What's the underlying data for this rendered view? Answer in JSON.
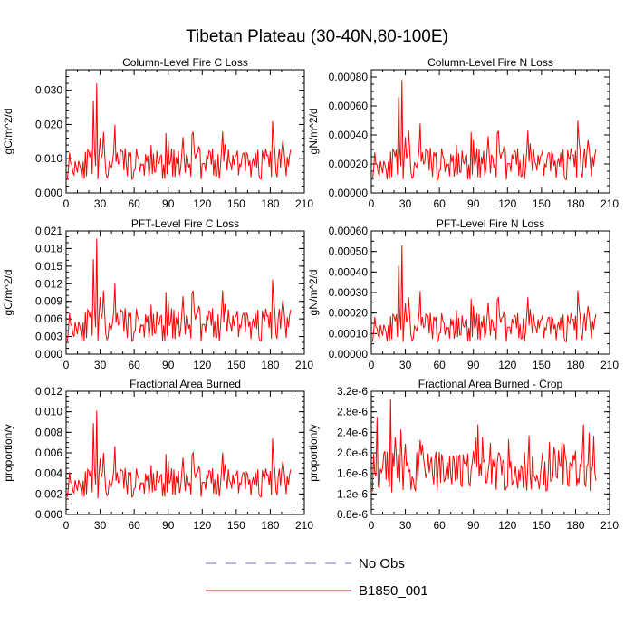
{
  "title": "Tibetan Plateau (30-40N,80-100E)",
  "colors": {
    "series": "#ff0000",
    "obs": "#6f6fc0",
    "axis": "#000000"
  },
  "legend": [
    {
      "label": "No Obs",
      "style": "dashed",
      "color": "#6f6fc0"
    },
    {
      "label": "B1850_001",
      "style": "solid",
      "color": "#ff0000"
    }
  ],
  "chart_data": [
    {
      "type": "line",
      "title": "Column-Level Fire C Loss",
      "ylabel": "gC/m^2/d",
      "xlim": [
        0,
        210
      ],
      "xticks": [
        0,
        30,
        60,
        90,
        120,
        150,
        180,
        210
      ],
      "xticklabels": [
        "0",
        "30",
        "60",
        "90",
        "120",
        "150",
        "180",
        "210"
      ],
      "ylim": [
        0,
        0.036
      ],
      "yticks": [
        0,
        0.01,
        0.02,
        0.03
      ],
      "yticklabels": [
        "0.000",
        "0.010",
        "0.020",
        "0.030"
      ],
      "yminor": 0.002,
      "series": [
        {
          "name": "B1850_001",
          "peak": 0.032,
          "peak_at": 27,
          "second": 0.027,
          "second_at": 24,
          "base": 0.0085,
          "amp": 0.0045,
          "late_peak": 0.021,
          "late_at": 182,
          "min": 0.002,
          "x_end": 198,
          "seed": 11
        }
      ]
    },
    {
      "type": "line",
      "title": "Column-Level Fire N Loss",
      "ylabel": "gN/m^2/d",
      "xlim": [
        0,
        210
      ],
      "xticks": [
        0,
        30,
        60,
        90,
        120,
        150,
        180,
        210
      ],
      "xticklabels": [
        "0",
        "30",
        "60",
        "90",
        "120",
        "150",
        "180",
        "210"
      ],
      "ylim": [
        0,
        0.00085
      ],
      "yticks": [
        0,
        0.0002,
        0.0004,
        0.0006,
        0.0008
      ],
      "yticklabels": [
        "0.00000",
        "0.00020",
        "0.00040",
        "0.00060",
        "0.00080"
      ],
      "yminor": 5e-05,
      "series": [
        {
          "name": "B1850_001",
          "peak": 0.00078,
          "peak_at": 27,
          "second": 0.00066,
          "second_at": 24,
          "base": 0.0002,
          "amp": 0.00011,
          "late_peak": 0.0005,
          "late_at": 182,
          "min": 5e-05,
          "x_end": 198,
          "seed": 11
        }
      ]
    },
    {
      "type": "line",
      "title": "PFT-Level Fire C Loss",
      "ylabel": "gC/m^2/d",
      "xlim": [
        0,
        210
      ],
      "xticks": [
        0,
        30,
        60,
        90,
        120,
        150,
        180,
        210
      ],
      "xticklabels": [
        "0",
        "30",
        "60",
        "90",
        "120",
        "150",
        "180",
        "210"
      ],
      "ylim": [
        0,
        0.021
      ],
      "yticks": [
        0,
        0.003,
        0.006,
        0.009,
        0.012,
        0.015,
        0.018,
        0.021
      ],
      "yticklabels": [
        "0.000",
        "0.003",
        "0.006",
        "0.009",
        "0.012",
        "0.015",
        "0.018",
        "0.021"
      ],
      "yminor": 0.001,
      "series": [
        {
          "name": "B1850_001",
          "peak": 0.0197,
          "peak_at": 27,
          "second": 0.0162,
          "second_at": 24,
          "base": 0.005,
          "amp": 0.0028,
          "late_peak": 0.0127,
          "late_at": 182,
          "min": 0.0012,
          "x_end": 198,
          "seed": 11
        }
      ]
    },
    {
      "type": "line",
      "title": "PFT-Level Fire N Loss",
      "ylabel": "gN/m^2/d",
      "xlim": [
        0,
        210
      ],
      "xticks": [
        0,
        30,
        60,
        90,
        120,
        150,
        180,
        210
      ],
      "xticklabels": [
        "0",
        "30",
        "60",
        "90",
        "120",
        "150",
        "180",
        "210"
      ],
      "ylim": [
        0,
        0.0006
      ],
      "yticks": [
        0,
        0.0001,
        0.0002,
        0.0003,
        0.0004,
        0.0005,
        0.0006
      ],
      "yticklabels": [
        "0.00000",
        "0.00010",
        "0.00020",
        "0.00030",
        "0.00040",
        "0.00050",
        "0.00060"
      ],
      "yminor": 5e-05,
      "series": [
        {
          "name": "B1850_001",
          "peak": 0.00053,
          "peak_at": 27,
          "second": 0.00043,
          "second_at": 24,
          "base": 0.00013,
          "amp": 7e-05,
          "late_peak": 0.00031,
          "late_at": 182,
          "min": 3e-05,
          "x_end": 198,
          "seed": 11
        }
      ]
    },
    {
      "type": "line",
      "title": "Fractional Area Burned",
      "ylabel": "proportion/y",
      "xlim": [
        0,
        210
      ],
      "xticks": [
        0,
        30,
        60,
        90,
        120,
        150,
        180,
        210
      ],
      "xticklabels": [
        "0",
        "30",
        "60",
        "90",
        "120",
        "150",
        "180",
        "210"
      ],
      "ylim": [
        0,
        0.012
      ],
      "yticks": [
        0,
        0.002,
        0.004,
        0.006,
        0.008,
        0.01,
        0.012
      ],
      "yticklabels": [
        "0.000",
        "0.002",
        "0.004",
        "0.006",
        "0.008",
        "0.010",
        "0.012"
      ],
      "yminor": 0.0005,
      "series": [
        {
          "name": "B1850_001",
          "peak": 0.0101,
          "peak_at": 27,
          "second": 0.0089,
          "second_at": 24,
          "base": 0.0031,
          "amp": 0.0014,
          "late_peak": 0.0074,
          "late_at": 182,
          "min": 0.0009,
          "x_end": 198,
          "seed": 11
        }
      ]
    },
    {
      "type": "line",
      "title": "Fractional Area Burned - Crop",
      "ylabel": "proportion/y",
      "xlim": [
        0,
        210
      ],
      "xticks": [
        0,
        30,
        60,
        90,
        120,
        150,
        180,
        210
      ],
      "xticklabels": [
        "0",
        "30",
        "60",
        "90",
        "120",
        "150",
        "180",
        "210"
      ],
      "ylim": [
        8e-07,
        3.2e-06
      ],
      "yticks": [
        8e-07,
        1.2e-06,
        1.6e-06,
        2e-06,
        2.4e-06,
        2.8e-06,
        3.2e-06
      ],
      "yticklabels": [
        "0.8e-6",
        "1.2e-6",
        "1.6e-6",
        "2.0e-6",
        "2.4e-6",
        "2.8e-6",
        "3.2e-6"
      ],
      "yminor": 1e-07,
      "series": [
        {
          "name": "B1850_001",
          "peak": 3.05e-06,
          "peak_at": 17,
          "second": 2.7e-06,
          "second_at": 5,
          "base": 1.65e-06,
          "amp": 4e-07,
          "late_peak": 2.55e-06,
          "late_at": 187,
          "min": 1.05e-06,
          "x_end": 198,
          "seed": 29
        }
      ]
    }
  ]
}
